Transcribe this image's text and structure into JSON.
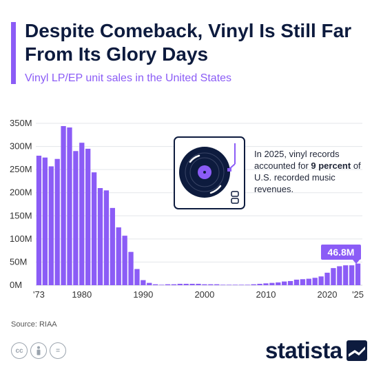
{
  "header": {
    "title": "Despite Comeback, Vinyl Is Still Far From Its Glory Days",
    "subtitle": "Vinyl LP/EP unit sales in the United States"
  },
  "annotation": {
    "text_before": "In 2025, vinyl records accounted for ",
    "text_bold": "9 percent",
    "text_after": " of U.S. recorded music revenues."
  },
  "footer": {
    "source": "Source: RIAA",
    "brand": "statista"
  },
  "colors": {
    "accent": "#8b5cf6",
    "text": "#0d1b3e"
  },
  "chart_data": {
    "type": "bar",
    "ylim": [
      0,
      350
    ],
    "y_ticks": [
      {
        "value": 0,
        "label": "0M"
      },
      {
        "value": 50,
        "label": "50M"
      },
      {
        "value": 100,
        "label": "100M"
      },
      {
        "value": 150,
        "label": "150M"
      },
      {
        "value": 200,
        "label": "200M"
      },
      {
        "value": 250,
        "label": "250M"
      },
      {
        "value": 300,
        "label": "300M"
      },
      {
        "value": 350,
        "label": "350M"
      }
    ],
    "x_ticks": [
      {
        "year": 1973,
        "label": "'73"
      },
      {
        "year": 1980,
        "label": "1980"
      },
      {
        "year": 1990,
        "label": "1990"
      },
      {
        "year": 2000,
        "label": "2000"
      },
      {
        "year": 2010,
        "label": "2010"
      },
      {
        "year": 2020,
        "label": "2020"
      },
      {
        "year": 2025,
        "label": "'25"
      }
    ],
    "grid": true,
    "categories": [
      1973,
      1974,
      1975,
      1976,
      1977,
      1978,
      1979,
      1980,
      1981,
      1982,
      1983,
      1984,
      1985,
      1986,
      1987,
      1988,
      1989,
      1990,
      1991,
      1992,
      1993,
      1994,
      1995,
      1996,
      1997,
      1998,
      1999,
      2000,
      2001,
      2002,
      2003,
      2004,
      2005,
      2006,
      2007,
      2008,
      2009,
      2010,
      2011,
      2012,
      2013,
      2014,
      2015,
      2016,
      2017,
      2018,
      2019,
      2020,
      2021,
      2022,
      2023,
      2024,
      2025
    ],
    "values": [
      280,
      276,
      257,
      273,
      344,
      341,
      290,
      308,
      295,
      244,
      210,
      205,
      167,
      125,
      107,
      72,
      35,
      11,
      5,
      2,
      1,
      2,
      2,
      3,
      3,
      3,
      3,
      2,
      2,
      2,
      1,
      1,
      1,
      1,
      1,
      2,
      3,
      4,
      5,
      6,
      8,
      9,
      12,
      13,
      14,
      16,
      19,
      27,
      37,
      41,
      43,
      43,
      46.8
    ],
    "highlight": {
      "year": 2025,
      "label": "46.8M"
    }
  }
}
